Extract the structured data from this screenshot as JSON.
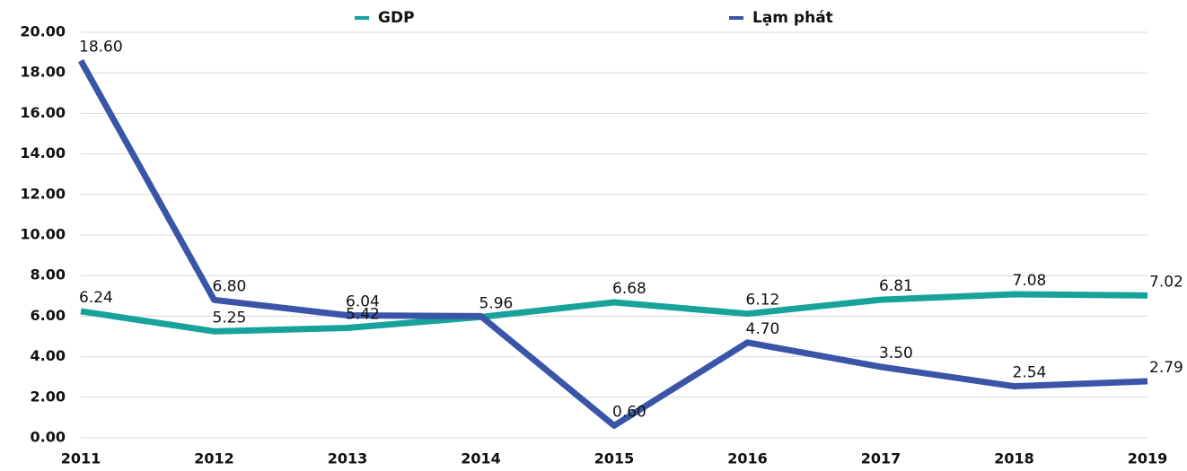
{
  "chart_data": {
    "type": "line",
    "categories": [
      "2011",
      "2012",
      "2013",
      "2014",
      "2015",
      "2016",
      "2017",
      "2018",
      "2019"
    ],
    "series": [
      {
        "name": "GDP",
        "color": "#17a39b",
        "values": [
          6.24,
          5.25,
          5.42,
          5.96,
          6.68,
          6.12,
          6.81,
          7.08,
          7.02
        ],
        "value_labels": [
          "6.24",
          "5.25",
          "5.42",
          "5.96",
          "6.68",
          "6.12",
          "6.81",
          "7.08",
          "7.02"
        ]
      },
      {
        "name": "Lạm phát",
        "color": "#3a55a8",
        "values": [
          18.6,
          6.8,
          6.04,
          6.0,
          0.6,
          4.7,
          3.5,
          2.54,
          2.79
        ],
        "value_labels": [
          "18.60",
          "6.80",
          "6.04",
          null,
          "0.60",
          "4.70",
          "3.50",
          "2.54",
          "2.79"
        ]
      }
    ],
    "ylim": [
      0,
      20
    ],
    "yticks": [
      {
        "value": 0,
        "label": "0.00"
      },
      {
        "value": 2,
        "label": "2.00"
      },
      {
        "value": 4,
        "label": "4.00"
      },
      {
        "value": 6,
        "label": "6.00"
      },
      {
        "value": 8,
        "label": "8.00"
      },
      {
        "value": 10,
        "label": "10.00"
      },
      {
        "value": 12,
        "label": "12.00"
      },
      {
        "value": 14,
        "label": "14.00"
      },
      {
        "value": 16,
        "label": "16.00"
      },
      {
        "value": 18,
        "label": "18.00"
      },
      {
        "value": 20,
        "label": "20.00"
      }
    ],
    "grid": true,
    "legend": "top"
  }
}
